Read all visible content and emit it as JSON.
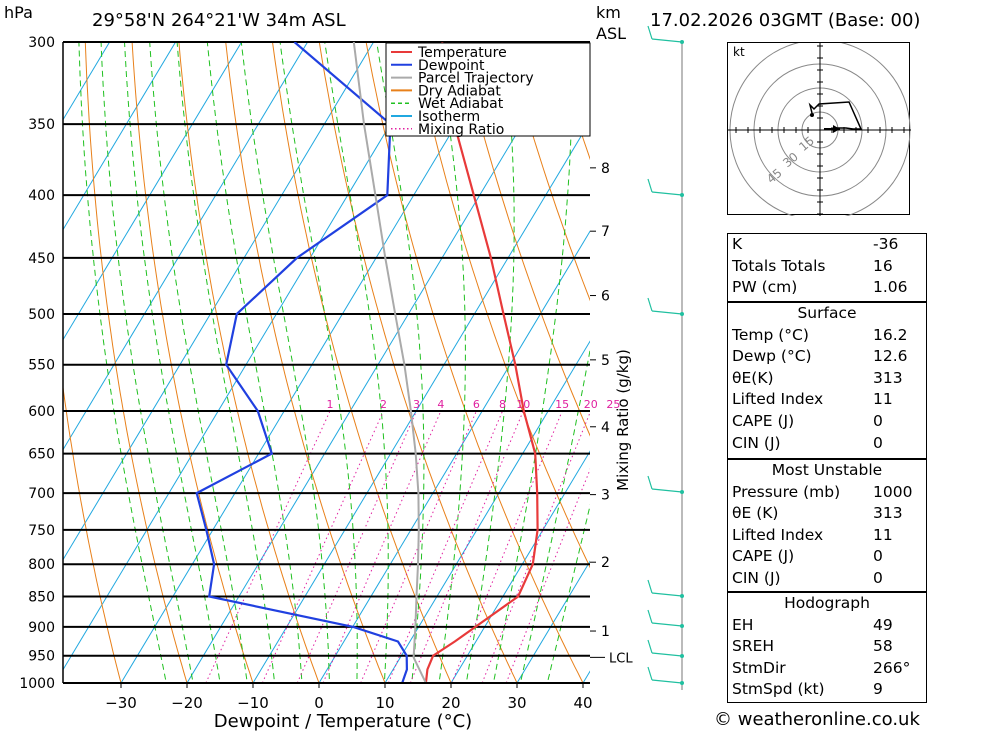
{
  "header": {
    "pressure_unit": "hPa",
    "location": "29°58'N  264°21'W  34m  ASL",
    "km_label": "km",
    "asl_label": "ASL",
    "datetime": "17.02.2026  03GMT  (Base: 00)"
  },
  "chart_data": {
    "type": "line",
    "title": "29°58'N 264°21'W 34m ASL",
    "xlabel": "Dewpoint / Temperature (°C)",
    "ylabel": "hPa",
    "xlim": [
      -40,
      40
    ],
    "ylim": [
      1000,
      300
    ],
    "x_ticks": [
      -30,
      -20,
      -10,
      0,
      10,
      20,
      30,
      40
    ],
    "pressure_levels": [
      300,
      350,
      400,
      450,
      500,
      550,
      600,
      650,
      700,
      750,
      800,
      850,
      900,
      950,
      1000
    ],
    "km_ticks": [
      {
        "label": "8",
        "p": 380
      },
      {
        "label": "7",
        "p": 428
      },
      {
        "label": "6",
        "p": 483
      },
      {
        "label": "5",
        "p": 545
      },
      {
        "label": "4",
        "p": 618
      },
      {
        "label": "3",
        "p": 702
      },
      {
        "label": "2",
        "p": 797
      },
      {
        "label": "1",
        "p": 907
      }
    ],
    "lcl": {
      "label": "LCL",
      "p": 953
    },
    "mixing_ratio_label": "Mixing Ratio (g/kg)",
    "mixing_ratio_values": [
      "1",
      "2",
      "3",
      "4",
      "6",
      "8",
      "10",
      "15",
      "20",
      "25"
    ],
    "series": [
      {
        "name": "Temperature",
        "color": "#e83a3a",
        "points": [
          [
            1000,
            16.2
          ],
          [
            975,
            15.2
          ],
          [
            950,
            14.8
          ],
          [
            925,
            16.8
          ],
          [
            900,
            18.6
          ],
          [
            850,
            22.3
          ],
          [
            800,
            21.6
          ],
          [
            750,
            19.2
          ],
          [
            700,
            15.8
          ],
          [
            650,
            11.9
          ],
          [
            600,
            6.3
          ],
          [
            550,
            0.8
          ],
          [
            500,
            -5.6
          ],
          [
            450,
            -12.6
          ],
          [
            400,
            -20.9
          ],
          [
            350,
            -30.3
          ],
          [
            300,
            -39.6
          ]
        ]
      },
      {
        "name": "Dewpoint",
        "color": "#2040e0",
        "points": [
          [
            1000,
            12.6
          ],
          [
            975,
            12.1
          ],
          [
            950,
            10.8
          ],
          [
            925,
            8.2
          ],
          [
            900,
            0.1
          ],
          [
            850,
            -24.5
          ],
          [
            800,
            -26.7
          ],
          [
            750,
            -31.0
          ],
          [
            700,
            -35.8
          ],
          [
            650,
            -28.0
          ],
          [
            600,
            -34.0
          ],
          [
            550,
            -43.0
          ],
          [
            500,
            -46.0
          ],
          [
            450,
            -42.0
          ],
          [
            400,
            -34.0
          ],
          [
            350,
            -40.0
          ],
          [
            300,
            -62.0
          ]
        ]
      },
      {
        "name": "Parcel Trajectory",
        "color": "#aaaaaa",
        "points": [
          [
            1000,
            16.2
          ],
          [
            953,
            12.0
          ],
          [
            900,
            9.5
          ],
          [
            850,
            6.9
          ],
          [
            800,
            4.2
          ],
          [
            750,
            1.2
          ],
          [
            700,
            -2.2
          ],
          [
            650,
            -6.2
          ],
          [
            600,
            -10.8
          ],
          [
            550,
            -16.0
          ],
          [
            500,
            -22.0
          ],
          [
            450,
            -28.6
          ],
          [
            400,
            -35.8
          ],
          [
            350,
            -44.0
          ],
          [
            300,
            -53.0
          ]
        ]
      }
    ],
    "legend": {
      "position": "top-right",
      "entries": [
        {
          "label": "Temperature",
          "color": "#e83a3a",
          "style": "solid"
        },
        {
          "label": "Dewpoint",
          "color": "#2040e0",
          "style": "solid"
        },
        {
          "label": "Parcel Trajectory",
          "color": "#aaaaaa",
          "style": "solid"
        },
        {
          "label": "Dry Adiabat",
          "color": "#e8801a",
          "style": "solid"
        },
        {
          "label": "Wet Adiabat",
          "color": "#20c020",
          "style": "dashed"
        },
        {
          "label": "Isotherm",
          "color": "#20a8e0",
          "style": "solid"
        },
        {
          "label": "Mixing Ratio",
          "color": "#e020a0",
          "style": "dotted"
        }
      ]
    },
    "hodograph": {
      "unit": "kt",
      "ring_labels": [
        "15",
        "30",
        "45"
      ]
    }
  },
  "indices": {
    "top": [
      {
        "key": "K",
        "value": "-36"
      },
      {
        "key": "Totals Totals",
        "value": "16"
      },
      {
        "key": "PW (cm)",
        "value": "1.06"
      }
    ],
    "surface": {
      "title": "Surface",
      "rows": [
        {
          "key": "Temp (°C)",
          "value": "16.2"
        },
        {
          "key": "Dewp (°C)",
          "value": "12.6"
        },
        {
          "key": "θE(K)",
          "value": "313"
        },
        {
          "key": "Lifted Index",
          "value": "11"
        },
        {
          "key": "CAPE (J)",
          "value": "0"
        },
        {
          "key": "CIN (J)",
          "value": "0"
        }
      ]
    },
    "most_unstable": {
      "title": "Most Unstable",
      "rows": [
        {
          "key": "Pressure (mb)",
          "value": "1000"
        },
        {
          "key": "θE (K)",
          "value": "313"
        },
        {
          "key": "Lifted Index",
          "value": "11"
        },
        {
          "key": "CAPE (J)",
          "value": "0"
        },
        {
          "key": "CIN (J)",
          "value": "0"
        }
      ]
    },
    "hodograph": {
      "title": "Hodograph",
      "rows": [
        {
          "key": "EH",
          "value": "49"
        },
        {
          "key": "SREH",
          "value": "58"
        },
        {
          "key": "StmDir",
          "value": "266°"
        },
        {
          "key": "StmSpd (kt)",
          "value": "9"
        }
      ]
    }
  },
  "credit": "© weatheronline.co.uk",
  "colors": {
    "temperature": "#e83a3a",
    "dewpoint": "#2040e0",
    "parcel": "#aaaaaa",
    "dry_adiabat": "#e8801a",
    "wet_adiabat": "#20c020",
    "isotherm": "#20a8e0",
    "mixing_ratio": "#e020a0",
    "wind": "#20c0a0"
  }
}
